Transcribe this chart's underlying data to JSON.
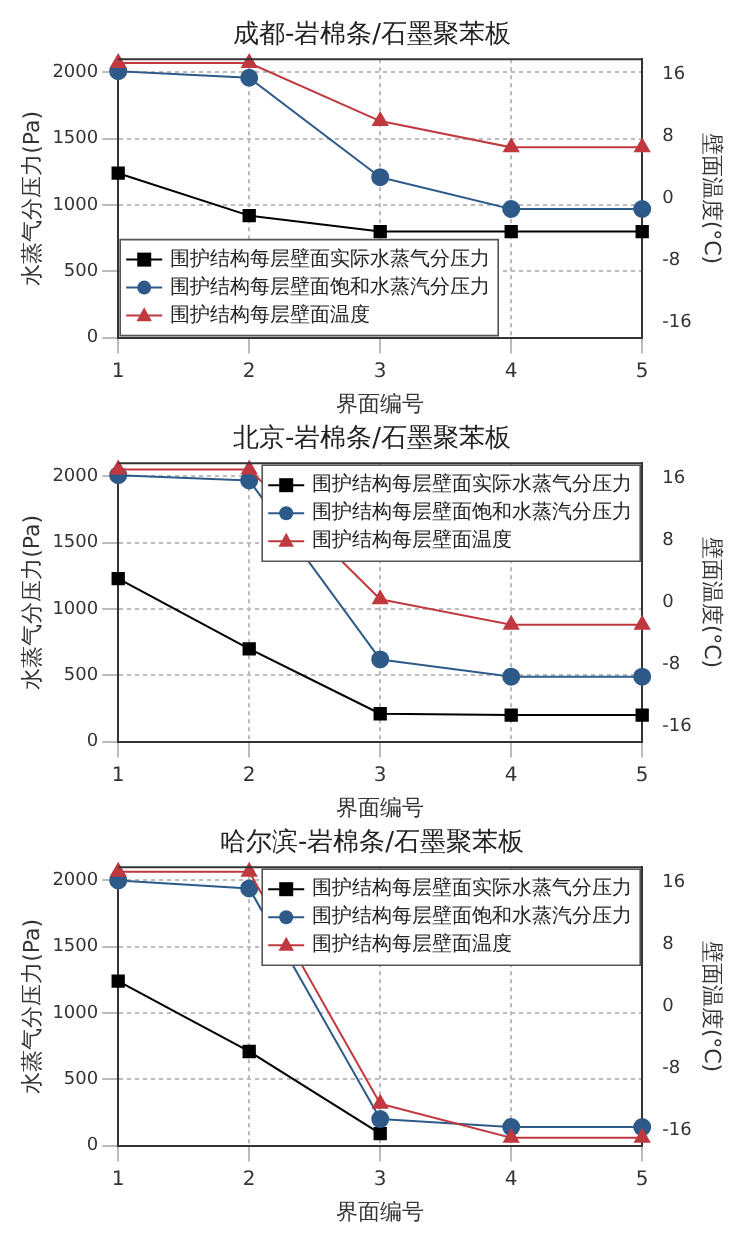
{
  "chart_data": [
    {
      "type": "line",
      "title": "成都-岩棉条/石墨聚苯板",
      "xlabel": "界面编号",
      "ylabel": "水蒸气分压力(Pa)",
      "y2label": "壁面温度(°C)",
      "x": [
        1,
        2,
        3,
        4,
        5
      ],
      "xlim": [
        1,
        5
      ],
      "xticks": [
        1,
        2,
        3,
        4,
        5
      ],
      "ylim": [
        0,
        2100
      ],
      "yticks": [
        0,
        500,
        1000,
        1500,
        2000
      ],
      "y2lim": [
        -18,
        18
      ],
      "y2ticks": [
        -16,
        -8,
        0,
        8,
        16
      ],
      "grid": true,
      "legend": "bottom left",
      "series": [
        {
          "name": "围护结构每层壁面实际水蒸气分压力",
          "color": "#000000",
          "marker": "square",
          "values": [
            1240,
            920,
            800,
            800,
            800
          ]
        },
        {
          "name": "围护结构每层壁面饱和水蒸汽分压力",
          "color": "#2e5a8a",
          "marker": "circle",
          "values": [
            2010,
            1960,
            1210,
            970,
            970
          ]
        },
        {
          "name": "围护结构每层壁面温度",
          "color": "#c0393f",
          "marker": "triangle",
          "axis": "y2",
          "values": [
            17.5,
            17.5,
            10,
            6.6,
            6.6
          ]
        }
      ]
    },
    {
      "type": "line",
      "title": "北京-岩棉条/石墨聚苯板",
      "xlabel": "界面编号",
      "ylabel": "水蒸气分压力(Pa)",
      "y2label": "壁面温度(°C)",
      "x": [
        1,
        2,
        3,
        4,
        5
      ],
      "xlim": [
        1,
        5
      ],
      "xticks": [
        1,
        2,
        3,
        4,
        5
      ],
      "ylim": [
        0,
        2100
      ],
      "yticks": [
        0,
        500,
        1000,
        1500,
        2000
      ],
      "y2lim": [
        -18,
        18
      ],
      "y2ticks": [
        -16,
        -8,
        0,
        8,
        16
      ],
      "grid": true,
      "legend": "top right",
      "series": [
        {
          "name": "围护结构每层壁面实际水蒸气分压力",
          "color": "#000000",
          "marker": "square",
          "values": [
            1230,
            700,
            210,
            200,
            200
          ]
        },
        {
          "name": "围护结构每层壁面饱和水蒸汽分压力",
          "color": "#2e5a8a",
          "marker": "circle",
          "values": [
            2010,
            1970,
            620,
            490,
            490
          ]
        },
        {
          "name": "围护结构每层壁面温度",
          "color": "#c0393f",
          "marker": "triangle",
          "axis": "y2",
          "values": [
            17.2,
            17.2,
            0.4,
            -2.9,
            -2.9
          ]
        }
      ]
    },
    {
      "type": "line",
      "title": "哈尔滨-岩棉条/石墨聚苯板",
      "xlabel": "界面编号",
      "ylabel": "水蒸气分压力(Pa)",
      "y2label": "壁面温度(°C)",
      "x": [
        1,
        2,
        3,
        4,
        5
      ],
      "xlim": [
        1,
        5
      ],
      "xticks": [
        1,
        2,
        3,
        4,
        5
      ],
      "ylim": [
        0,
        2100
      ],
      "yticks": [
        0,
        500,
        1000,
        1500,
        2000
      ],
      "y2lim": [
        -18,
        18
      ],
      "y2ticks": [
        -16,
        -8,
        0,
        8,
        16
      ],
      "grid": true,
      "legend": "top right",
      "series": [
        {
          "name": "围护结构每层壁面实际水蒸气分压力",
          "color": "#000000",
          "marker": "square",
          "values": [
            1240,
            710,
            90,
            null,
            null
          ]
        },
        {
          "name": "围护结构每层壁面饱和水蒸汽分压力",
          "color": "#2e5a8a",
          "marker": "circle",
          "values": [
            2000,
            1940,
            200,
            140,
            140
          ]
        },
        {
          "name": "围护结构每层壁面温度",
          "color": "#c0393f",
          "marker": "triangle",
          "axis": "y2",
          "values": [
            17.4,
            17.4,
            -12.6,
            -17,
            -17
          ]
        }
      ]
    }
  ]
}
